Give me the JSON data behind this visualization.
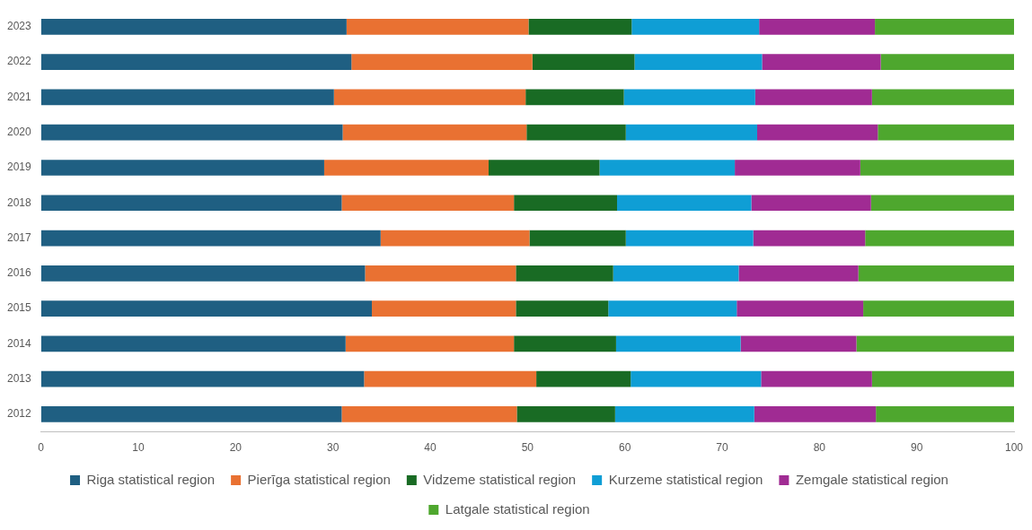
{
  "chart_data": {
    "type": "bar",
    "orientation": "horizontal",
    "stacked": true,
    "grid": false,
    "legend": "bottom",
    "categories": [
      "2023",
      "2022",
      "2021",
      "2020",
      "2019",
      "2018",
      "2017",
      "2016",
      "2015",
      "2014",
      "2013",
      "2012"
    ],
    "xlim": [
      0,
      100
    ],
    "xticks": [
      0,
      10,
      20,
      30,
      40,
      50,
      60,
      70,
      80,
      90,
      100
    ],
    "series": [
      {
        "name": "Riga statistical region",
        "color": "#1f5f82",
        "values": [
          31.4,
          31.9,
          30.1,
          31.0,
          29.1,
          30.9,
          34.9,
          33.3,
          34.0,
          31.3,
          33.2,
          30.9
        ]
      },
      {
        "name": "Pierīga statistical region",
        "color": "#e97132",
        "values": [
          18.7,
          18.6,
          19.7,
          18.9,
          16.9,
          17.7,
          15.3,
          15.5,
          14.8,
          17.3,
          17.7,
          18.0
        ]
      },
      {
        "name": "Vidzeme statistical region",
        "color": "#196b24",
        "values": [
          10.6,
          10.5,
          10.1,
          10.2,
          11.4,
          10.6,
          9.9,
          10.0,
          9.5,
          10.5,
          9.7,
          10.1
        ]
      },
      {
        "name": "Kurzeme statistical region",
        "color": "#0f9ed5",
        "values": [
          13.1,
          13.1,
          13.5,
          13.5,
          13.9,
          13.8,
          13.1,
          12.9,
          13.2,
          12.8,
          13.4,
          14.3
        ]
      },
      {
        "name": "Zemgale statistical region",
        "color": "#a02b93",
        "values": [
          11.9,
          12.2,
          12.0,
          12.4,
          12.9,
          12.3,
          11.5,
          12.3,
          13.0,
          11.9,
          11.4,
          12.5
        ]
      },
      {
        "name": "Latgale statistical region",
        "color": "#4ea72e",
        "values": [
          14.3,
          13.7,
          14.6,
          14.0,
          15.8,
          14.7,
          15.3,
          16.0,
          15.5,
          16.2,
          14.6,
          14.2
        ]
      }
    ]
  }
}
